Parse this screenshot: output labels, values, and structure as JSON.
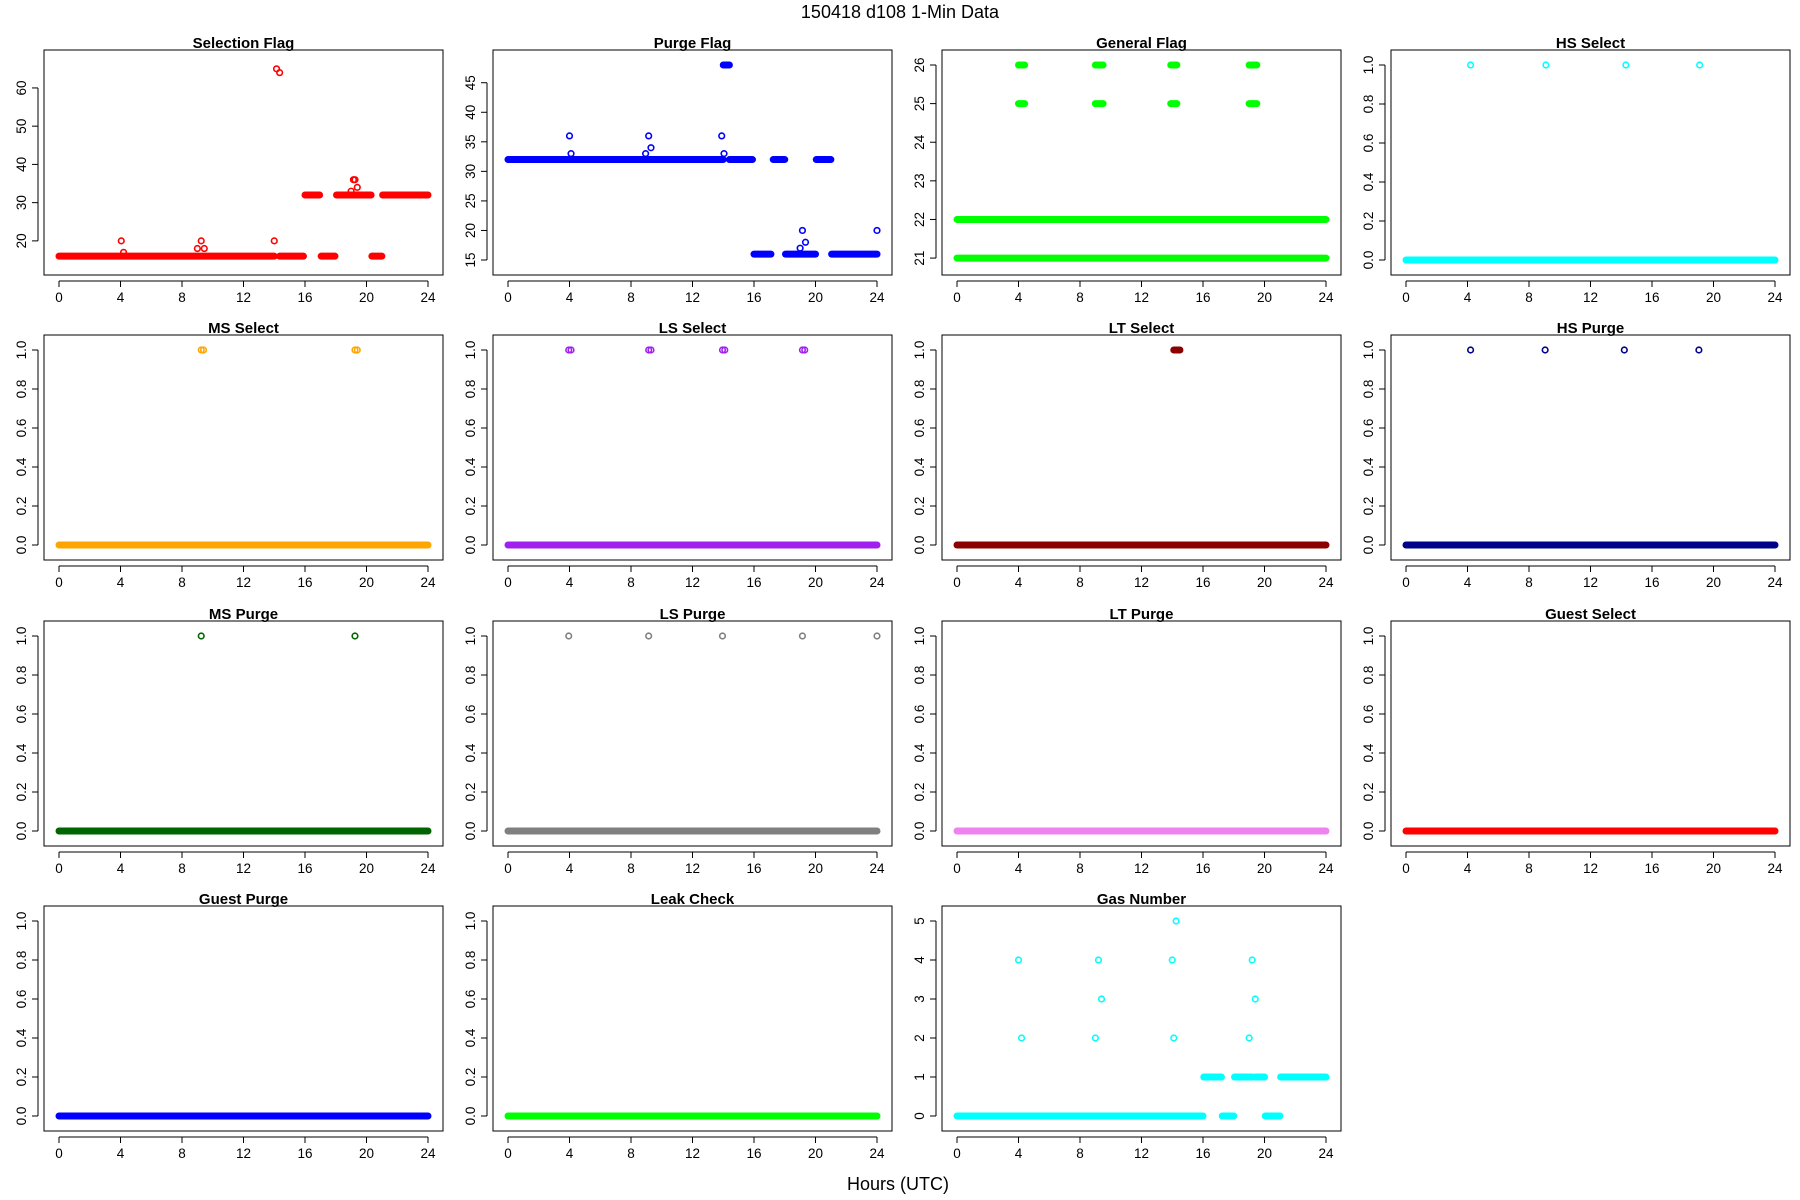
{
  "figure": {
    "title": "150418   d108   1-Min Data",
    "xlabel": "Hours (UTC)"
  },
  "chart_data": [
    {
      "type": "scatter",
      "title": "Selection Flag",
      "color": "#ff0000",
      "xlim": [
        0,
        24
      ],
      "xticks": [
        0,
        4,
        8,
        12,
        16,
        20,
        24
      ],
      "ylim": [
        15,
        66
      ],
      "yticks": [
        20,
        30,
        40,
        50,
        60
      ],
      "runs": [
        {
          "from": 0,
          "to": 14.0,
          "y": 16
        },
        {
          "from": 14.35,
          "to": 15.9,
          "y": 16
        },
        {
          "from": 16.0,
          "to": 16.95,
          "y": 32
        },
        {
          "from": 17.05,
          "to": 17.95,
          "y": 16
        },
        {
          "from": 18.05,
          "to": 19.75,
          "y": 32
        },
        {
          "from": 19.85,
          "to": 20.3,
          "y": 32
        },
        {
          "from": 20.35,
          "to": 21.0,
          "y": 16
        },
        {
          "from": 21.05,
          "to": 24.0,
          "y": 32
        }
      ],
      "points": [
        {
          "x": 4.05,
          "y": 20
        },
        {
          "x": 4.2,
          "y": 17
        },
        {
          "x": 9.0,
          "y": 18
        },
        {
          "x": 9.25,
          "y": 20
        },
        {
          "x": 9.45,
          "y": 18
        },
        {
          "x": 14.0,
          "y": 20
        },
        {
          "x": 14.15,
          "y": 65
        },
        {
          "x": 14.35,
          "y": 64
        },
        {
          "x": 19.0,
          "y": 33
        },
        {
          "x": 19.25,
          "y": 36
        },
        {
          "x": 19.4,
          "y": 34
        },
        {
          "x": 19.15,
          "y": 36
        }
      ]
    },
    {
      "type": "scatter",
      "title": "Purge Flag",
      "color": "#0000ff",
      "xlim": [
        0,
        24
      ],
      "xticks": [
        0,
        4,
        8,
        12,
        16,
        20,
        24
      ],
      "ylim": [
        15,
        48
      ],
      "yticks": [
        15,
        20,
        25,
        30,
        35,
        40,
        45
      ],
      "runs": [
        {
          "from": 0,
          "to": 14.0,
          "y": 32
        },
        {
          "from": 14.4,
          "to": 15.9,
          "y": 32
        },
        {
          "from": 16.0,
          "to": 17.1,
          "y": 16
        },
        {
          "from": 17.25,
          "to": 18.0,
          "y": 32
        },
        {
          "from": 18.05,
          "to": 20.0,
          "y": 16
        },
        {
          "from": 20.05,
          "to": 21.0,
          "y": 32
        },
        {
          "from": 21.05,
          "to": 24.0,
          "y": 16
        },
        {
          "from": 14.0,
          "to": 14.4,
          "y": 48
        }
      ],
      "points": [
        {
          "x": 4.0,
          "y": 36
        },
        {
          "x": 4.1,
          "y": 33
        },
        {
          "x": 8.95,
          "y": 33
        },
        {
          "x": 9.15,
          "y": 36
        },
        {
          "x": 9.3,
          "y": 34
        },
        {
          "x": 13.9,
          "y": 36
        },
        {
          "x": 14.05,
          "y": 33
        },
        {
          "x": 19.0,
          "y": 17
        },
        {
          "x": 19.15,
          "y": 20
        },
        {
          "x": 19.35,
          "y": 18
        },
        {
          "x": 24.0,
          "y": 20
        }
      ]
    },
    {
      "type": "scatter",
      "title": "General Flag",
      "color": "#00ff00",
      "xlim": [
        0,
        24
      ],
      "xticks": [
        0,
        4,
        8,
        12,
        16,
        20,
        24
      ],
      "ylim": [
        20.95,
        26
      ],
      "yticks": [
        21,
        22,
        23,
        24,
        25,
        26
      ],
      "runs": [
        {
          "from": 0,
          "to": 24,
          "y": 21
        },
        {
          "from": 0,
          "to": 24,
          "y": 22
        },
        {
          "from": 4.0,
          "to": 4.4,
          "y": 25
        },
        {
          "from": 4.0,
          "to": 4.4,
          "y": 26
        },
        {
          "from": 9.0,
          "to": 9.5,
          "y": 25
        },
        {
          "from": 9.0,
          "to": 9.5,
          "y": 26
        },
        {
          "from": 13.9,
          "to": 14.3,
          "y": 25
        },
        {
          "from": 13.9,
          "to": 14.3,
          "y": 26
        },
        {
          "from": 19.0,
          "to": 19.5,
          "y": 25
        },
        {
          "from": 19.0,
          "to": 19.5,
          "y": 26
        }
      ],
      "points": []
    },
    {
      "type": "scatter",
      "title": "HS Select",
      "color": "#00ffff",
      "xlim": [
        0,
        24
      ],
      "xticks": [
        0,
        4,
        8,
        12,
        16,
        20,
        24
      ],
      "ylim": [
        0,
        1
      ],
      "yticks": [
        0.0,
        0.2,
        0.4,
        0.6,
        0.8,
        1.0
      ],
      "runs": [
        {
          "from": 0,
          "to": 24,
          "y": 0
        }
      ],
      "points": [
        {
          "x": 4.2,
          "y": 1
        },
        {
          "x": 9.1,
          "y": 1
        },
        {
          "x": 14.3,
          "y": 1
        },
        {
          "x": 19.1,
          "y": 1
        }
      ]
    },
    {
      "type": "scatter",
      "title": "MS Select",
      "color": "#ffa500",
      "xlim": [
        0,
        24
      ],
      "xticks": [
        0,
        4,
        8,
        12,
        16,
        20,
        24
      ],
      "ylim": [
        0,
        1
      ],
      "yticks": [
        0.0,
        0.2,
        0.4,
        0.6,
        0.8,
        1.0
      ],
      "runs": [
        {
          "from": 0,
          "to": 24,
          "y": 0
        }
      ],
      "points": [
        {
          "x": 9.25,
          "y": 1
        },
        {
          "x": 9.4,
          "y": 1
        },
        {
          "x": 19.25,
          "y": 1
        },
        {
          "x": 19.4,
          "y": 1
        }
      ]
    },
    {
      "type": "scatter",
      "title": "LS Select",
      "color": "#a020f0",
      "xlim": [
        0,
        24
      ],
      "xticks": [
        0,
        4,
        8,
        12,
        16,
        20,
        24
      ],
      "ylim": [
        0,
        1
      ],
      "yticks": [
        0.0,
        0.2,
        0.4,
        0.6,
        0.8,
        1.0
      ],
      "runs": [
        {
          "from": 0,
          "to": 24,
          "y": 0
        }
      ],
      "points": [
        {
          "x": 3.95,
          "y": 1
        },
        {
          "x": 4.1,
          "y": 1
        },
        {
          "x": 9.15,
          "y": 1
        },
        {
          "x": 9.3,
          "y": 1
        },
        {
          "x": 13.95,
          "y": 1
        },
        {
          "x": 14.1,
          "y": 1
        },
        {
          "x": 19.15,
          "y": 1
        },
        {
          "x": 19.3,
          "y": 1
        }
      ]
    },
    {
      "type": "scatter",
      "title": "LT Select",
      "color": "#8b0000",
      "xlim": [
        0,
        24
      ],
      "xticks": [
        0,
        4,
        8,
        12,
        16,
        20,
        24
      ],
      "ylim": [
        0,
        1
      ],
      "yticks": [
        0.0,
        0.2,
        0.4,
        0.6,
        0.8,
        1.0
      ],
      "runs": [
        {
          "from": 0,
          "to": 24,
          "y": 0
        },
        {
          "from": 14.1,
          "to": 14.5,
          "y": 1
        }
      ],
      "points": []
    },
    {
      "type": "scatter",
      "title": "HS Purge",
      "color": "#00008b",
      "xlim": [
        0,
        24
      ],
      "xticks": [
        0,
        4,
        8,
        12,
        16,
        20,
        24
      ],
      "ylim": [
        0,
        1
      ],
      "yticks": [
        0.0,
        0.2,
        0.4,
        0.6,
        0.8,
        1.0
      ],
      "runs": [
        {
          "from": 0,
          "to": 24,
          "y": 0
        }
      ],
      "points": [
        {
          "x": 4.2,
          "y": 1
        },
        {
          "x": 9.05,
          "y": 1
        },
        {
          "x": 14.2,
          "y": 1
        },
        {
          "x": 19.05,
          "y": 1
        }
      ]
    },
    {
      "type": "scatter",
      "title": "MS Purge",
      "color": "#006400",
      "xlim": [
        0,
        24
      ],
      "xticks": [
        0,
        4,
        8,
        12,
        16,
        20,
        24
      ],
      "ylim": [
        0,
        1
      ],
      "yticks": [
        0.0,
        0.2,
        0.4,
        0.6,
        0.8,
        1.0
      ],
      "runs": [
        {
          "from": 0,
          "to": 24,
          "y": 0
        }
      ],
      "points": [
        {
          "x": 9.25,
          "y": 1
        },
        {
          "x": 19.25,
          "y": 1
        }
      ]
    },
    {
      "type": "scatter",
      "title": "LS Purge",
      "color": "#808080",
      "xlim": [
        0,
        24
      ],
      "xticks": [
        0,
        4,
        8,
        12,
        16,
        20,
        24
      ],
      "ylim": [
        0,
        1
      ],
      "yticks": [
        0.0,
        0.2,
        0.4,
        0.6,
        0.8,
        1.0
      ],
      "runs": [
        {
          "from": 0,
          "to": 24,
          "y": 0
        }
      ],
      "points": [
        {
          "x": 3.95,
          "y": 1
        },
        {
          "x": 9.15,
          "y": 1
        },
        {
          "x": 13.95,
          "y": 1
        },
        {
          "x": 19.15,
          "y": 1
        },
        {
          "x": 24.0,
          "y": 1
        }
      ]
    },
    {
      "type": "scatter",
      "title": "LT Purge",
      "color": "#ee82ee",
      "xlim": [
        0,
        24
      ],
      "xticks": [
        0,
        4,
        8,
        12,
        16,
        20,
        24
      ],
      "ylim": [
        0,
        1
      ],
      "yticks": [
        0.0,
        0.2,
        0.4,
        0.6,
        0.8,
        1.0
      ],
      "runs": [
        {
          "from": 0,
          "to": 24,
          "y": 0
        }
      ],
      "points": []
    },
    {
      "type": "scatter",
      "title": "Guest Select",
      "color": "#ff0000",
      "xlim": [
        0,
        24
      ],
      "xticks": [
        0,
        4,
        8,
        12,
        16,
        20,
        24
      ],
      "ylim": [
        0,
        1
      ],
      "yticks": [
        0.0,
        0.2,
        0.4,
        0.6,
        0.8,
        1.0
      ],
      "runs": [
        {
          "from": 0,
          "to": 24,
          "y": 0
        }
      ],
      "points": []
    },
    {
      "type": "scatter",
      "title": "Guest Purge",
      "color": "#0000ff",
      "xlim": [
        0,
        24
      ],
      "xticks": [
        0,
        4,
        8,
        12,
        16,
        20,
        24
      ],
      "ylim": [
        0,
        1
      ],
      "yticks": [
        0.0,
        0.2,
        0.4,
        0.6,
        0.8,
        1.0
      ],
      "runs": [
        {
          "from": 0,
          "to": 24,
          "y": 0
        }
      ],
      "points": []
    },
    {
      "type": "scatter",
      "title": "Leak Check",
      "color": "#00ff00",
      "xlim": [
        0,
        24
      ],
      "xticks": [
        0,
        4,
        8,
        12,
        16,
        20,
        24
      ],
      "ylim": [
        0,
        1
      ],
      "yticks": [
        0.0,
        0.2,
        0.4,
        0.6,
        0.8,
        1.0
      ],
      "runs": [
        {
          "from": 0,
          "to": 24,
          "y": 0
        }
      ],
      "points": []
    },
    {
      "type": "scatter",
      "title": "Gas Number",
      "color": "#00ffff",
      "xlim": [
        0,
        24
      ],
      "xticks": [
        0,
        4,
        8,
        12,
        16,
        20,
        24
      ],
      "ylim": [
        0,
        5
      ],
      "yticks": [
        0,
        1,
        2,
        3,
        4,
        5
      ],
      "runs": [
        {
          "from": 0,
          "to": 16.0,
          "y": 0
        },
        {
          "from": 16.05,
          "to": 17.2,
          "y": 1
        },
        {
          "from": 17.25,
          "to": 18.0,
          "y": 0
        },
        {
          "from": 18.05,
          "to": 19.2,
          "y": 1
        },
        {
          "from": 19.4,
          "to": 20.0,
          "y": 1
        },
        {
          "from": 20.05,
          "to": 21.0,
          "y": 0
        },
        {
          "from": 21.05,
          "to": 24.0,
          "y": 1
        }
      ],
      "points": [
        {
          "x": 4.0,
          "y": 4
        },
        {
          "x": 4.2,
          "y": 2
        },
        {
          "x": 9.0,
          "y": 2
        },
        {
          "x": 9.2,
          "y": 4
        },
        {
          "x": 9.4,
          "y": 3
        },
        {
          "x": 14.0,
          "y": 4
        },
        {
          "x": 14.1,
          "y": 2
        },
        {
          "x": 14.25,
          "y": 5
        },
        {
          "x": 19.0,
          "y": 2
        },
        {
          "x": 19.2,
          "y": 4
        },
        {
          "x": 19.4,
          "y": 3
        }
      ]
    }
  ]
}
